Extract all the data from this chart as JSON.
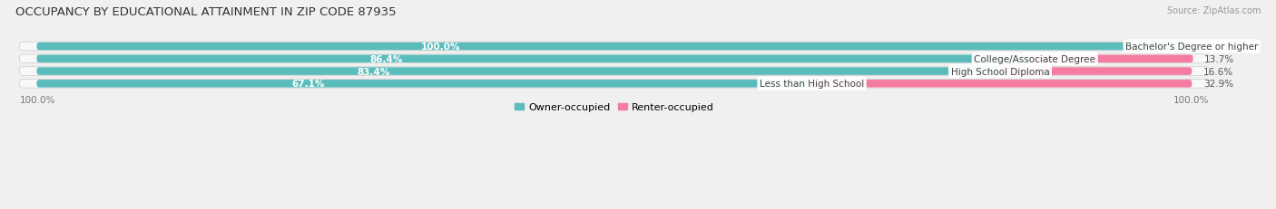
{
  "title": "OCCUPANCY BY EDUCATIONAL ATTAINMENT IN ZIP CODE 87935",
  "source": "Source: ZipAtlas.com",
  "categories": [
    "Less than High School",
    "High School Diploma",
    "College/Associate Degree",
    "Bachelor's Degree or higher"
  ],
  "owner_values": [
    67.1,
    83.4,
    86.4,
    100.0
  ],
  "renter_values": [
    32.9,
    16.6,
    13.7,
    0.0
  ],
  "owner_color": "#5BBCBC",
  "renter_color": "#F47CA0",
  "owner_label": "Owner-occupied",
  "renter_label": "Renter-occupied",
  "bg_color": "#f0f0f0",
  "bar_bg_color": "#e0e0e0",
  "row_colors": [
    "#fafafa",
    "#f0f0f0",
    "#fafafa",
    "#f0f0f0"
  ],
  "title_fontsize": 9.5,
  "label_fontsize": 8,
  "value_fontsize": 7.5,
  "source_fontsize": 7,
  "cat_fontsize": 7.5,
  "bar_height": 0.62,
  "xlim_left": "100.0%",
  "xlim_right": "100.0%"
}
